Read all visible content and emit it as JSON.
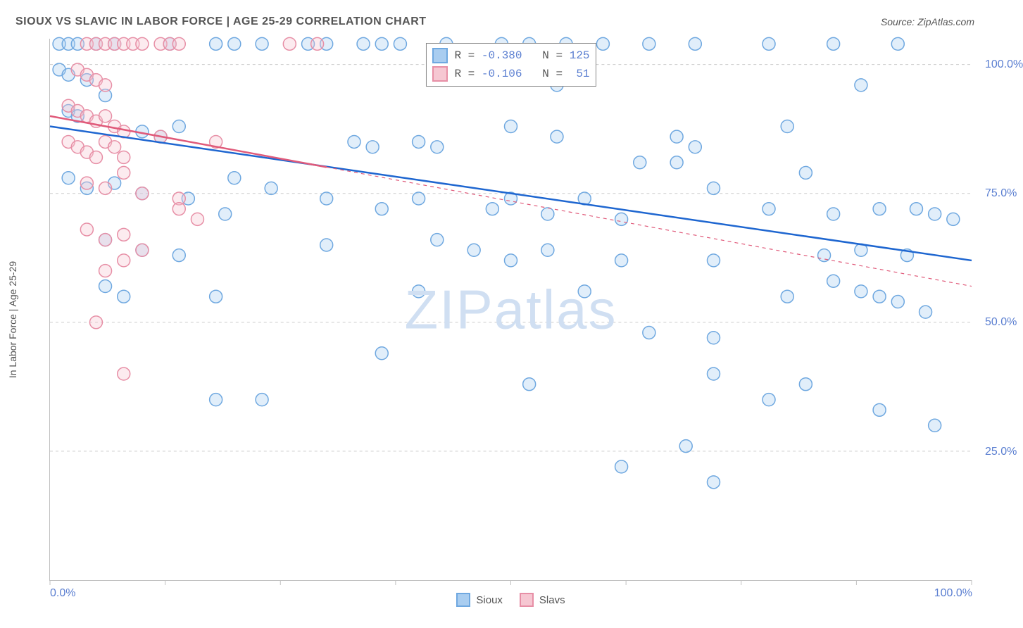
{
  "title": "SIOUX VS SLAVIC IN LABOR FORCE | AGE 25-29 CORRELATION CHART",
  "title_color": "#555555",
  "title_fontsize": 16,
  "source_label": "Source: ZipAtlas.com",
  "source_color": "#555555",
  "source_fontsize": 14,
  "y_axis_label": "In Labor Force | Age 25-29",
  "y_axis_label_color": "#555555",
  "y_axis_label_fontsize": 14,
  "watermark_text": "ZIPatlas",
  "watermark_color": "#d0dff2",
  "chart": {
    "type": "scatter",
    "background_color": "#ffffff",
    "grid_color": "#cccccc",
    "grid_dash": "4,4",
    "axis_color": "#c0c0c0",
    "xlim": [
      0,
      100
    ],
    "ylim": [
      0,
      105
    ],
    "y_ticks": [
      25,
      50,
      75,
      100
    ],
    "y_tick_labels": [
      "25.0%",
      "50.0%",
      "75.0%",
      "100.0%"
    ],
    "y_tick_color": "#5b7fd1",
    "y_tick_fontsize": 16,
    "x_ticks": [
      0,
      12.5,
      25,
      37.5,
      50,
      62.5,
      75,
      87.5,
      100
    ],
    "x_tick_labels_shown": {
      "0": "0.0%",
      "100": "100.0%"
    },
    "x_tick_color": "#5b7fd1",
    "x_tick_fontsize": 16,
    "marker_radius": 9,
    "marker_stroke_width": 1.5,
    "marker_fill_opacity": 0.35,
    "trend_line_width": 2.5
  },
  "series": [
    {
      "name": "Sioux",
      "marker_fill": "#a9cdf0",
      "marker_stroke": "#6fa8e0",
      "trend_color": "#1e66d0",
      "trend_dash": "none",
      "trend": {
        "x1": 0,
        "y1": 88,
        "x2": 100,
        "y2": 62
      },
      "R": "-0.380",
      "N": "125",
      "points": [
        [
          1,
          104
        ],
        [
          2,
          104
        ],
        [
          3,
          104
        ],
        [
          5,
          104
        ],
        [
          7,
          104
        ],
        [
          13,
          104
        ],
        [
          18,
          104
        ],
        [
          20,
          104
        ],
        [
          23,
          104
        ],
        [
          28,
          104
        ],
        [
          30,
          104
        ],
        [
          34,
          104
        ],
        [
          36,
          104
        ],
        [
          38,
          104
        ],
        [
          43,
          104
        ],
        [
          49,
          104
        ],
        [
          52,
          104
        ],
        [
          56,
          104
        ],
        [
          60,
          104
        ],
        [
          65,
          104
        ],
        [
          70,
          104
        ],
        [
          78,
          104
        ],
        [
          85,
          104
        ],
        [
          92,
          104
        ],
        [
          1,
          99
        ],
        [
          2,
          98
        ],
        [
          4,
          97
        ],
        [
          55,
          96
        ],
        [
          88,
          96
        ],
        [
          2,
          91
        ],
        [
          3,
          90
        ],
        [
          6,
          94
        ],
        [
          10,
          87
        ],
        [
          12,
          86
        ],
        [
          14,
          88
        ],
        [
          33,
          85
        ],
        [
          35,
          84
        ],
        [
          40,
          85
        ],
        [
          42,
          84
        ],
        [
          50,
          88
        ],
        [
          55,
          86
        ],
        [
          68,
          86
        ],
        [
          70,
          84
        ],
        [
          80,
          88
        ],
        [
          2,
          78
        ],
        [
          4,
          76
        ],
        [
          7,
          77
        ],
        [
          10,
          75
        ],
        [
          15,
          74
        ],
        [
          19,
          71
        ],
        [
          20,
          78
        ],
        [
          24,
          76
        ],
        [
          30,
          74
        ],
        [
          36,
          72
        ],
        [
          40,
          74
        ],
        [
          48,
          72
        ],
        [
          50,
          74
        ],
        [
          54,
          71
        ],
        [
          58,
          74
        ],
        [
          62,
          70
        ],
        [
          64,
          81
        ],
        [
          68,
          81
        ],
        [
          72,
          76
        ],
        [
          78,
          72
        ],
        [
          82,
          79
        ],
        [
          85,
          71
        ],
        [
          90,
          72
        ],
        [
          94,
          72
        ],
        [
          96,
          71
        ],
        [
          98,
          70
        ],
        [
          6,
          66
        ],
        [
          10,
          64
        ],
        [
          14,
          63
        ],
        [
          30,
          65
        ],
        [
          42,
          66
        ],
        [
          46,
          64
        ],
        [
          50,
          62
        ],
        [
          54,
          64
        ],
        [
          62,
          62
        ],
        [
          72,
          62
        ],
        [
          84,
          63
        ],
        [
          88,
          64
        ],
        [
          93,
          63
        ],
        [
          6,
          57
        ],
        [
          8,
          55
        ],
        [
          18,
          55
        ],
        [
          40,
          56
        ],
        [
          58,
          56
        ],
        [
          65,
          48
        ],
        [
          72,
          47
        ],
        [
          80,
          55
        ],
        [
          85,
          58
        ],
        [
          88,
          56
        ],
        [
          90,
          55
        ],
        [
          92,
          54
        ],
        [
          95,
          52
        ],
        [
          18,
          35
        ],
        [
          23,
          35
        ],
        [
          36,
          44
        ],
        [
          52,
          38
        ],
        [
          72,
          40
        ],
        [
          78,
          35
        ],
        [
          82,
          38
        ],
        [
          90,
          33
        ],
        [
          96,
          30
        ],
        [
          62,
          22
        ],
        [
          69,
          26
        ],
        [
          72,
          19
        ]
      ]
    },
    {
      "name": "Slavs",
      "marker_fill": "#f6c7d2",
      "marker_stroke": "#e78fa6",
      "trend_color": "#e05a7a",
      "trend_dash": "5,5",
      "trend": {
        "x1": 0,
        "y1": 90,
        "x2": 100,
        "y2": 57
      },
      "trend_solid_until_x": 30,
      "R": "-0.106",
      "N": "51",
      "points": [
        [
          4,
          104
        ],
        [
          5,
          104
        ],
        [
          6,
          104
        ],
        [
          7,
          104
        ],
        [
          8,
          104
        ],
        [
          9,
          104
        ],
        [
          10,
          104
        ],
        [
          12,
          104
        ],
        [
          13,
          104
        ],
        [
          14,
          104
        ],
        [
          26,
          104
        ],
        [
          29,
          104
        ],
        [
          3,
          99
        ],
        [
          4,
          98
        ],
        [
          5,
          97
        ],
        [
          6,
          96
        ],
        [
          2,
          92
        ],
        [
          3,
          91
        ],
        [
          4,
          90
        ],
        [
          5,
          89
        ],
        [
          6,
          90
        ],
        [
          7,
          88
        ],
        [
          8,
          87
        ],
        [
          2,
          85
        ],
        [
          3,
          84
        ],
        [
          4,
          83
        ],
        [
          5,
          82
        ],
        [
          6,
          85
        ],
        [
          7,
          84
        ],
        [
          8,
          82
        ],
        [
          12,
          86
        ],
        [
          18,
          85
        ],
        [
          4,
          77
        ],
        [
          6,
          76
        ],
        [
          8,
          79
        ],
        [
          10,
          75
        ],
        [
          14,
          74
        ],
        [
          4,
          68
        ],
        [
          6,
          66
        ],
        [
          8,
          67
        ],
        [
          10,
          64
        ],
        [
          14,
          72
        ],
        [
          16,
          70
        ],
        [
          6,
          60
        ],
        [
          8,
          62
        ],
        [
          5,
          50
        ],
        [
          8,
          40
        ]
      ]
    }
  ],
  "legend": {
    "items": [
      {
        "label": "Sioux",
        "fill": "#a9cdf0",
        "stroke": "#6fa8e0"
      },
      {
        "label": "Slavs",
        "fill": "#f6c7d2",
        "stroke": "#e78fa6"
      }
    ],
    "label_color": "#555555",
    "label_fontsize": 15
  },
  "stats_box": {
    "label_color": "#555555",
    "value_color": "#5b7fd1",
    "fontsize": 16
  }
}
